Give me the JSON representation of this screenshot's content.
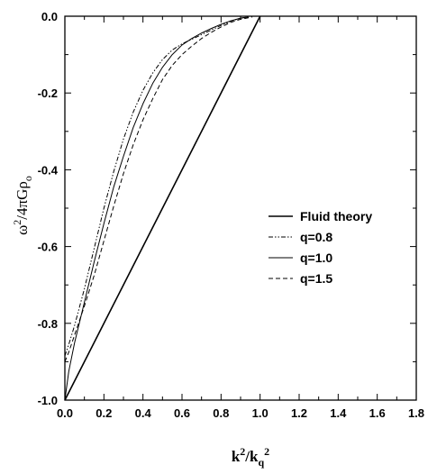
{
  "chart_data": {
    "type": "line",
    "xlabel": "k²/k_q²",
    "ylabel": "ω²/4πGρ₀",
    "xlim": [
      0.0,
      1.8
    ],
    "ylim": [
      -1.0,
      0.0
    ],
    "x_ticks": [
      "0.0",
      "0.2",
      "0.4",
      "0.6",
      "0.8",
      "1.0",
      "1.2",
      "1.4",
      "1.6",
      "1.8"
    ],
    "y_ticks": [
      "-1.0",
      "-0.8",
      "-0.6",
      "-0.4",
      "-0.2",
      "0.0"
    ],
    "grid": false,
    "legend_placement": "center-right",
    "series": [
      {
        "name": "Fluid theory",
        "style": "solid-thick",
        "x": [
          0.0,
          1.0
        ],
        "y": [
          -1.0,
          0.0
        ]
      },
      {
        "name": "q=0.8",
        "style": "dash-dot-dot",
        "x": [
          0.0,
          0.02,
          0.05,
          0.1,
          0.15,
          0.2,
          0.25,
          0.3,
          0.35,
          0.4,
          0.45,
          0.5,
          0.55,
          0.6,
          0.65,
          0.7,
          0.75,
          0.8,
          0.85,
          0.9,
          0.94
        ],
        "y": [
          -0.885,
          -0.855,
          -0.805,
          -0.71,
          -0.605,
          -0.5,
          -0.405,
          -0.32,
          -0.25,
          -0.193,
          -0.148,
          -0.113,
          -0.088,
          -0.072,
          -0.06,
          -0.048,
          -0.036,
          -0.024,
          -0.013,
          -0.005,
          -0.002
        ]
      },
      {
        "name": "q=1.0",
        "style": "solid-thin",
        "x": [
          0.0,
          0.02,
          0.05,
          0.1,
          0.15,
          0.2,
          0.25,
          0.3,
          0.35,
          0.4,
          0.45,
          0.5,
          0.55,
          0.6,
          0.65,
          0.7,
          0.75,
          0.8,
          0.85,
          0.9,
          0.94
        ],
        "y": [
          -1.0,
          -0.925,
          -0.85,
          -0.745,
          -0.64,
          -0.54,
          -0.445,
          -0.365,
          -0.29,
          -0.228,
          -0.175,
          -0.133,
          -0.1,
          -0.075,
          -0.058,
          -0.044,
          -0.032,
          -0.021,
          -0.012,
          -0.005,
          -0.002
        ]
      },
      {
        "name": "q=1.5",
        "style": "dashed",
        "x": [
          0.0,
          0.02,
          0.05,
          0.1,
          0.15,
          0.2,
          0.25,
          0.3,
          0.35,
          0.4,
          0.45,
          0.5,
          0.55,
          0.6,
          0.65,
          0.7,
          0.75,
          0.8,
          0.85,
          0.9,
          0.96
        ],
        "y": [
          -0.9,
          -0.875,
          -0.83,
          -0.755,
          -0.675,
          -0.585,
          -0.495,
          -0.41,
          -0.335,
          -0.27,
          -0.215,
          -0.165,
          -0.128,
          -0.1,
          -0.078,
          -0.058,
          -0.042,
          -0.028,
          -0.016,
          -0.008,
          -0.002
        ]
      }
    ]
  }
}
